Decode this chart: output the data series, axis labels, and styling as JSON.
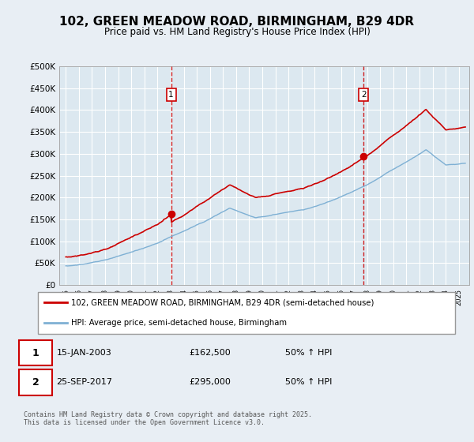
{
  "title1": "102, GREEN MEADOW ROAD, BIRMINGHAM, B29 4DR",
  "title2": "Price paid vs. HM Land Registry's House Price Index (HPI)",
  "bg_color": "#e8eef4",
  "plot_bg_color": "#dce8f0",
  "red_color": "#cc0000",
  "blue_color": "#7eb0d4",
  "dashed_color": "#cc0000",
  "purchase_dates": [
    2003.04,
    2017.73
  ],
  "purchase_labels": [
    "1",
    "2"
  ],
  "purchase_prices": [
    162500,
    295000
  ],
  "legend_line1": "102, GREEN MEADOW ROAD, BIRMINGHAM, B29 4DR (semi-detached house)",
  "legend_line2": "HPI: Average price, semi-detached house, Birmingham",
  "footer": "Contains HM Land Registry data © Crown copyright and database right 2025.\nThis data is licensed under the Open Government Licence v3.0.",
  "ylim": [
    0,
    500000
  ],
  "yticks": [
    0,
    50000,
    100000,
    150000,
    200000,
    250000,
    300000,
    350000,
    400000,
    450000,
    500000
  ],
  "xlim_start": 1994.5,
  "xlim_end": 2025.8,
  "sale1_year": 2003.04,
  "sale1_price": 162500,
  "sale2_year": 2017.73,
  "sale2_price": 295000
}
